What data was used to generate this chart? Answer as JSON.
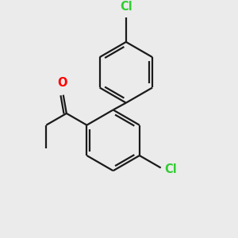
{
  "bg_color": "#ebebeb",
  "bond_color": "#1a1a1a",
  "cl_color": "#33cc33",
  "o_color": "#ff0000",
  "bond_width": 1.6,
  "font_size_cl": 10.5,
  "font_size_o": 10.5,
  "figsize": [
    3.0,
    3.0
  ],
  "dpi": 100,
  "xlim": [
    -0.5,
    3.0
  ],
  "ylim": [
    -0.6,
    3.2
  ]
}
